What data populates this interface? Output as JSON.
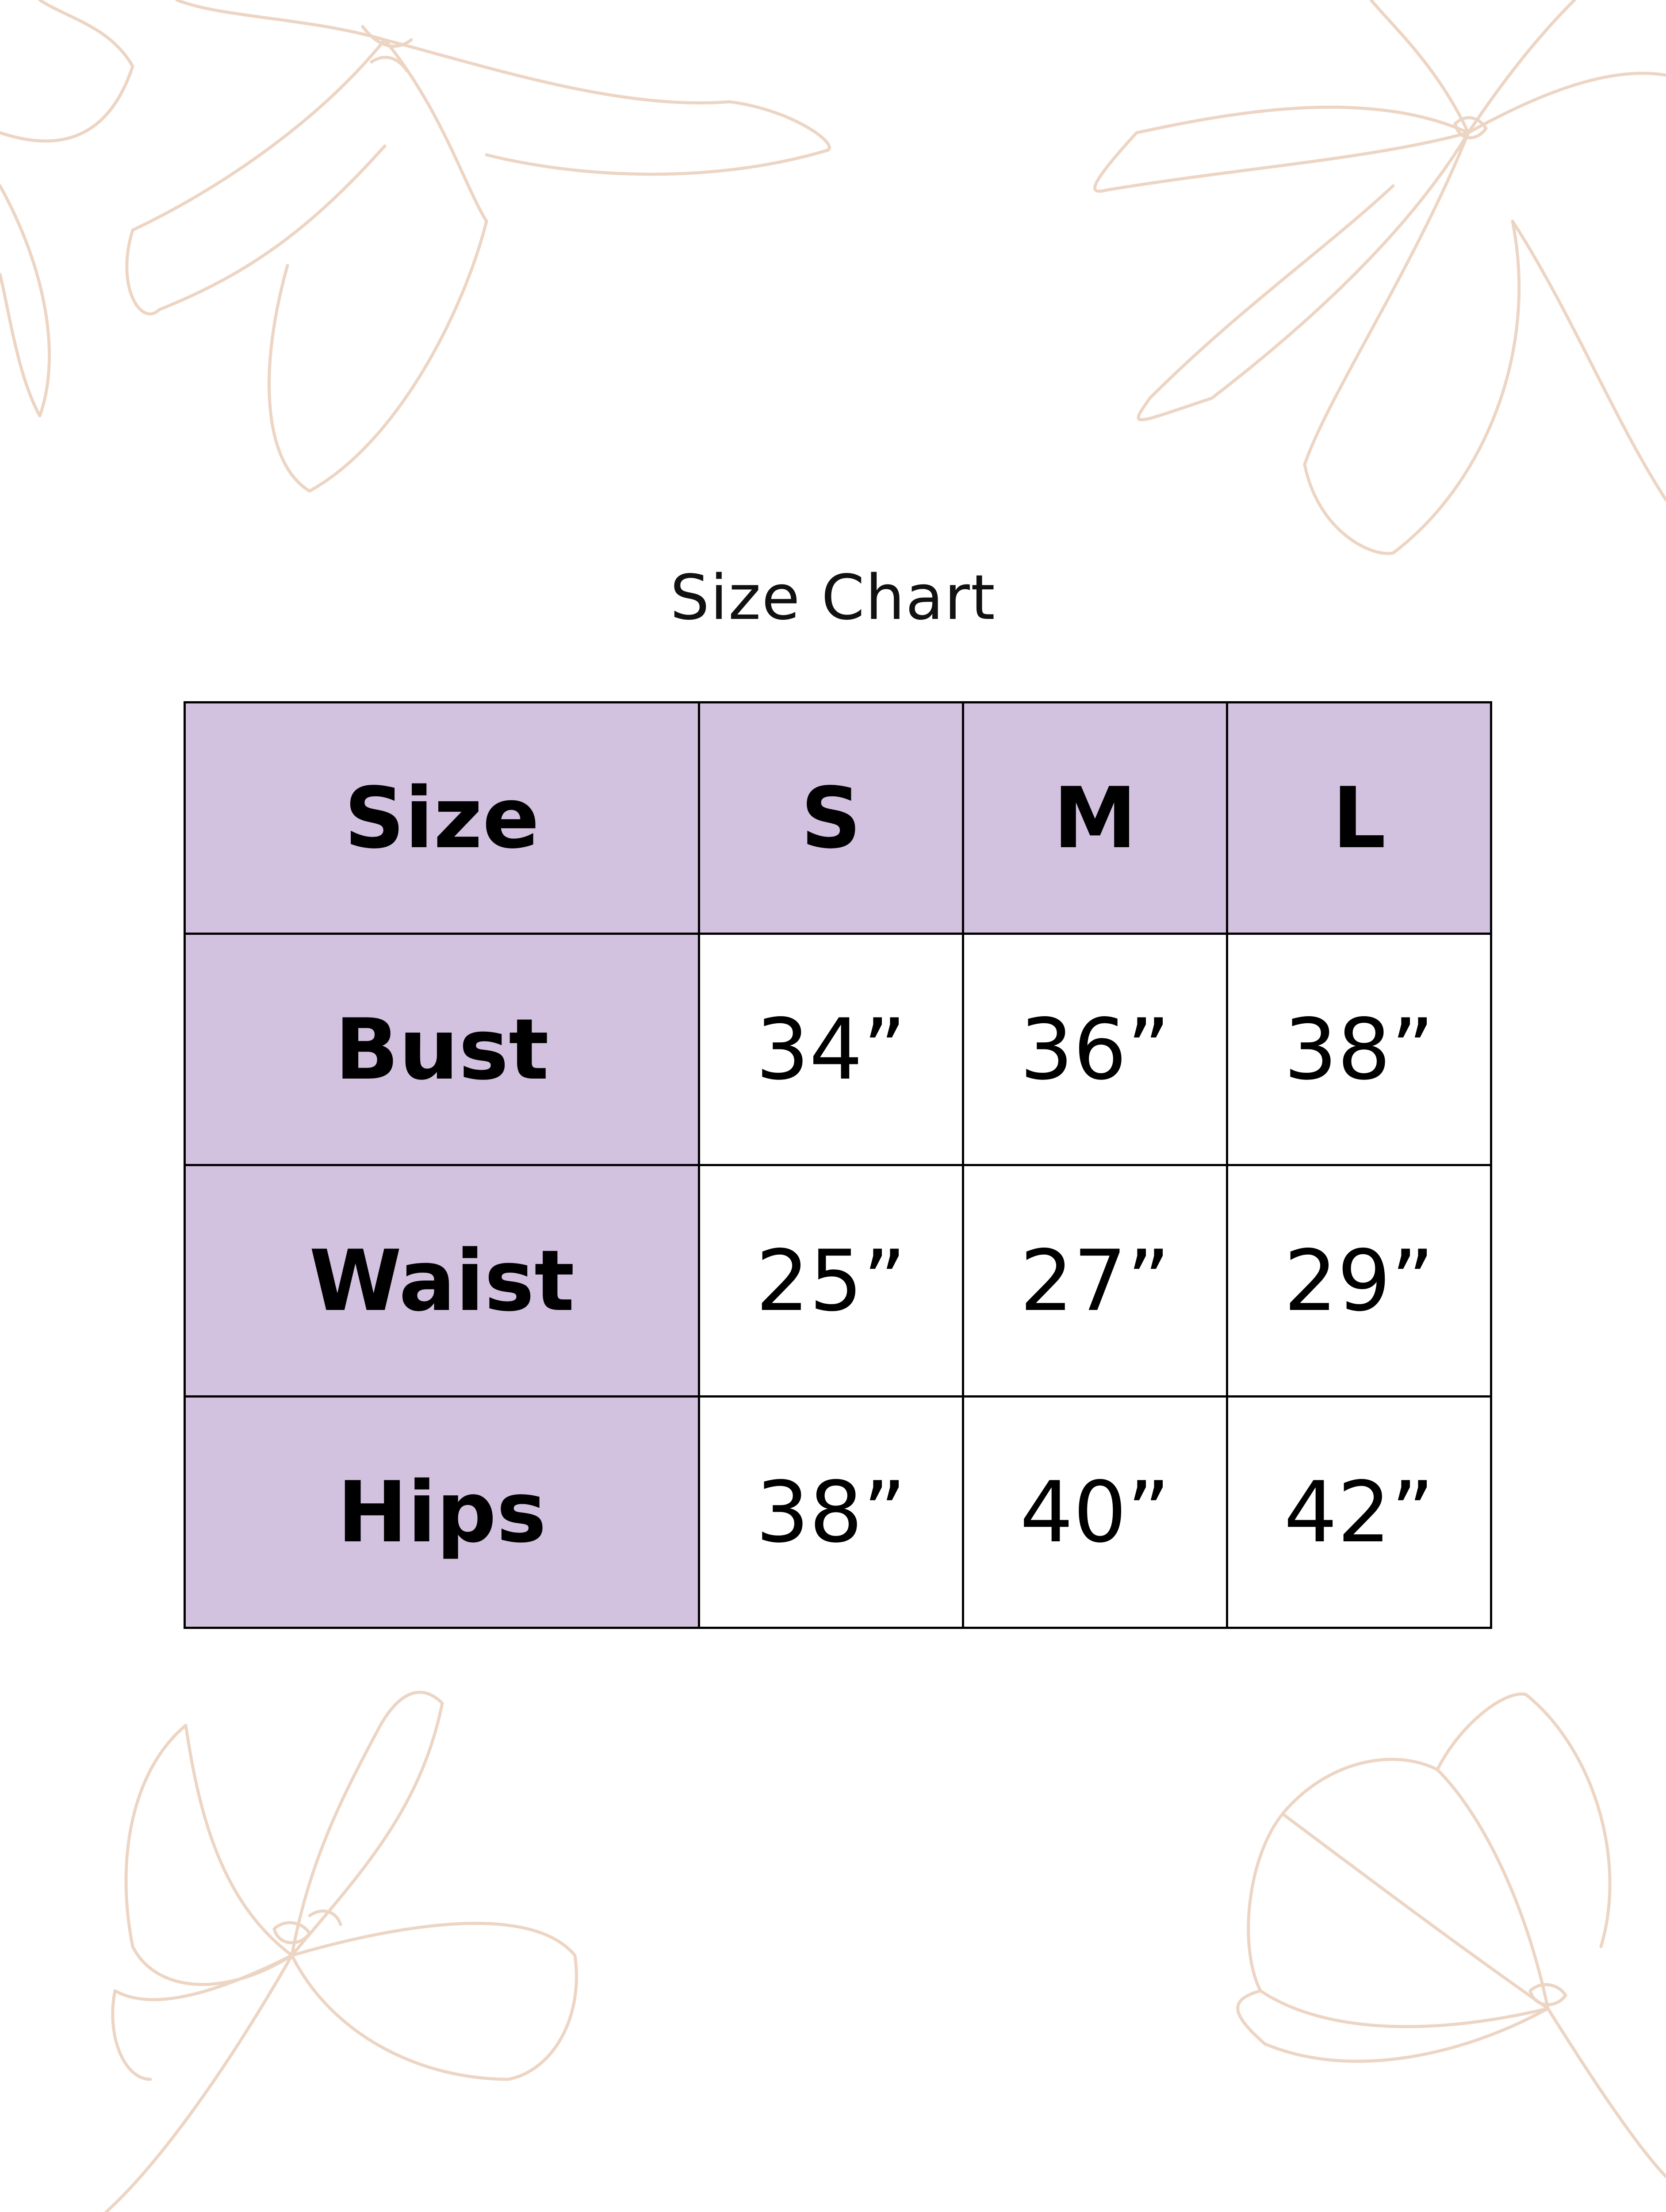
{
  "title": "Size Chart",
  "colors": {
    "header_fill": "#D2C1DF",
    "border": "#000000",
    "floral_line": "#EDD5C4"
  },
  "decoration": "floral-line-art",
  "table": {
    "header": [
      "Size",
      "S",
      "M",
      "L"
    ],
    "rows": [
      {
        "label": "Bust",
        "values": [
          "34”",
          "36”",
          "38”"
        ]
      },
      {
        "label": "Waist",
        "values": [
          "25”",
          "27”",
          "29”"
        ]
      },
      {
        "label": "Hips",
        "values": [
          "38”",
          "40”",
          "42”"
        ]
      }
    ]
  }
}
